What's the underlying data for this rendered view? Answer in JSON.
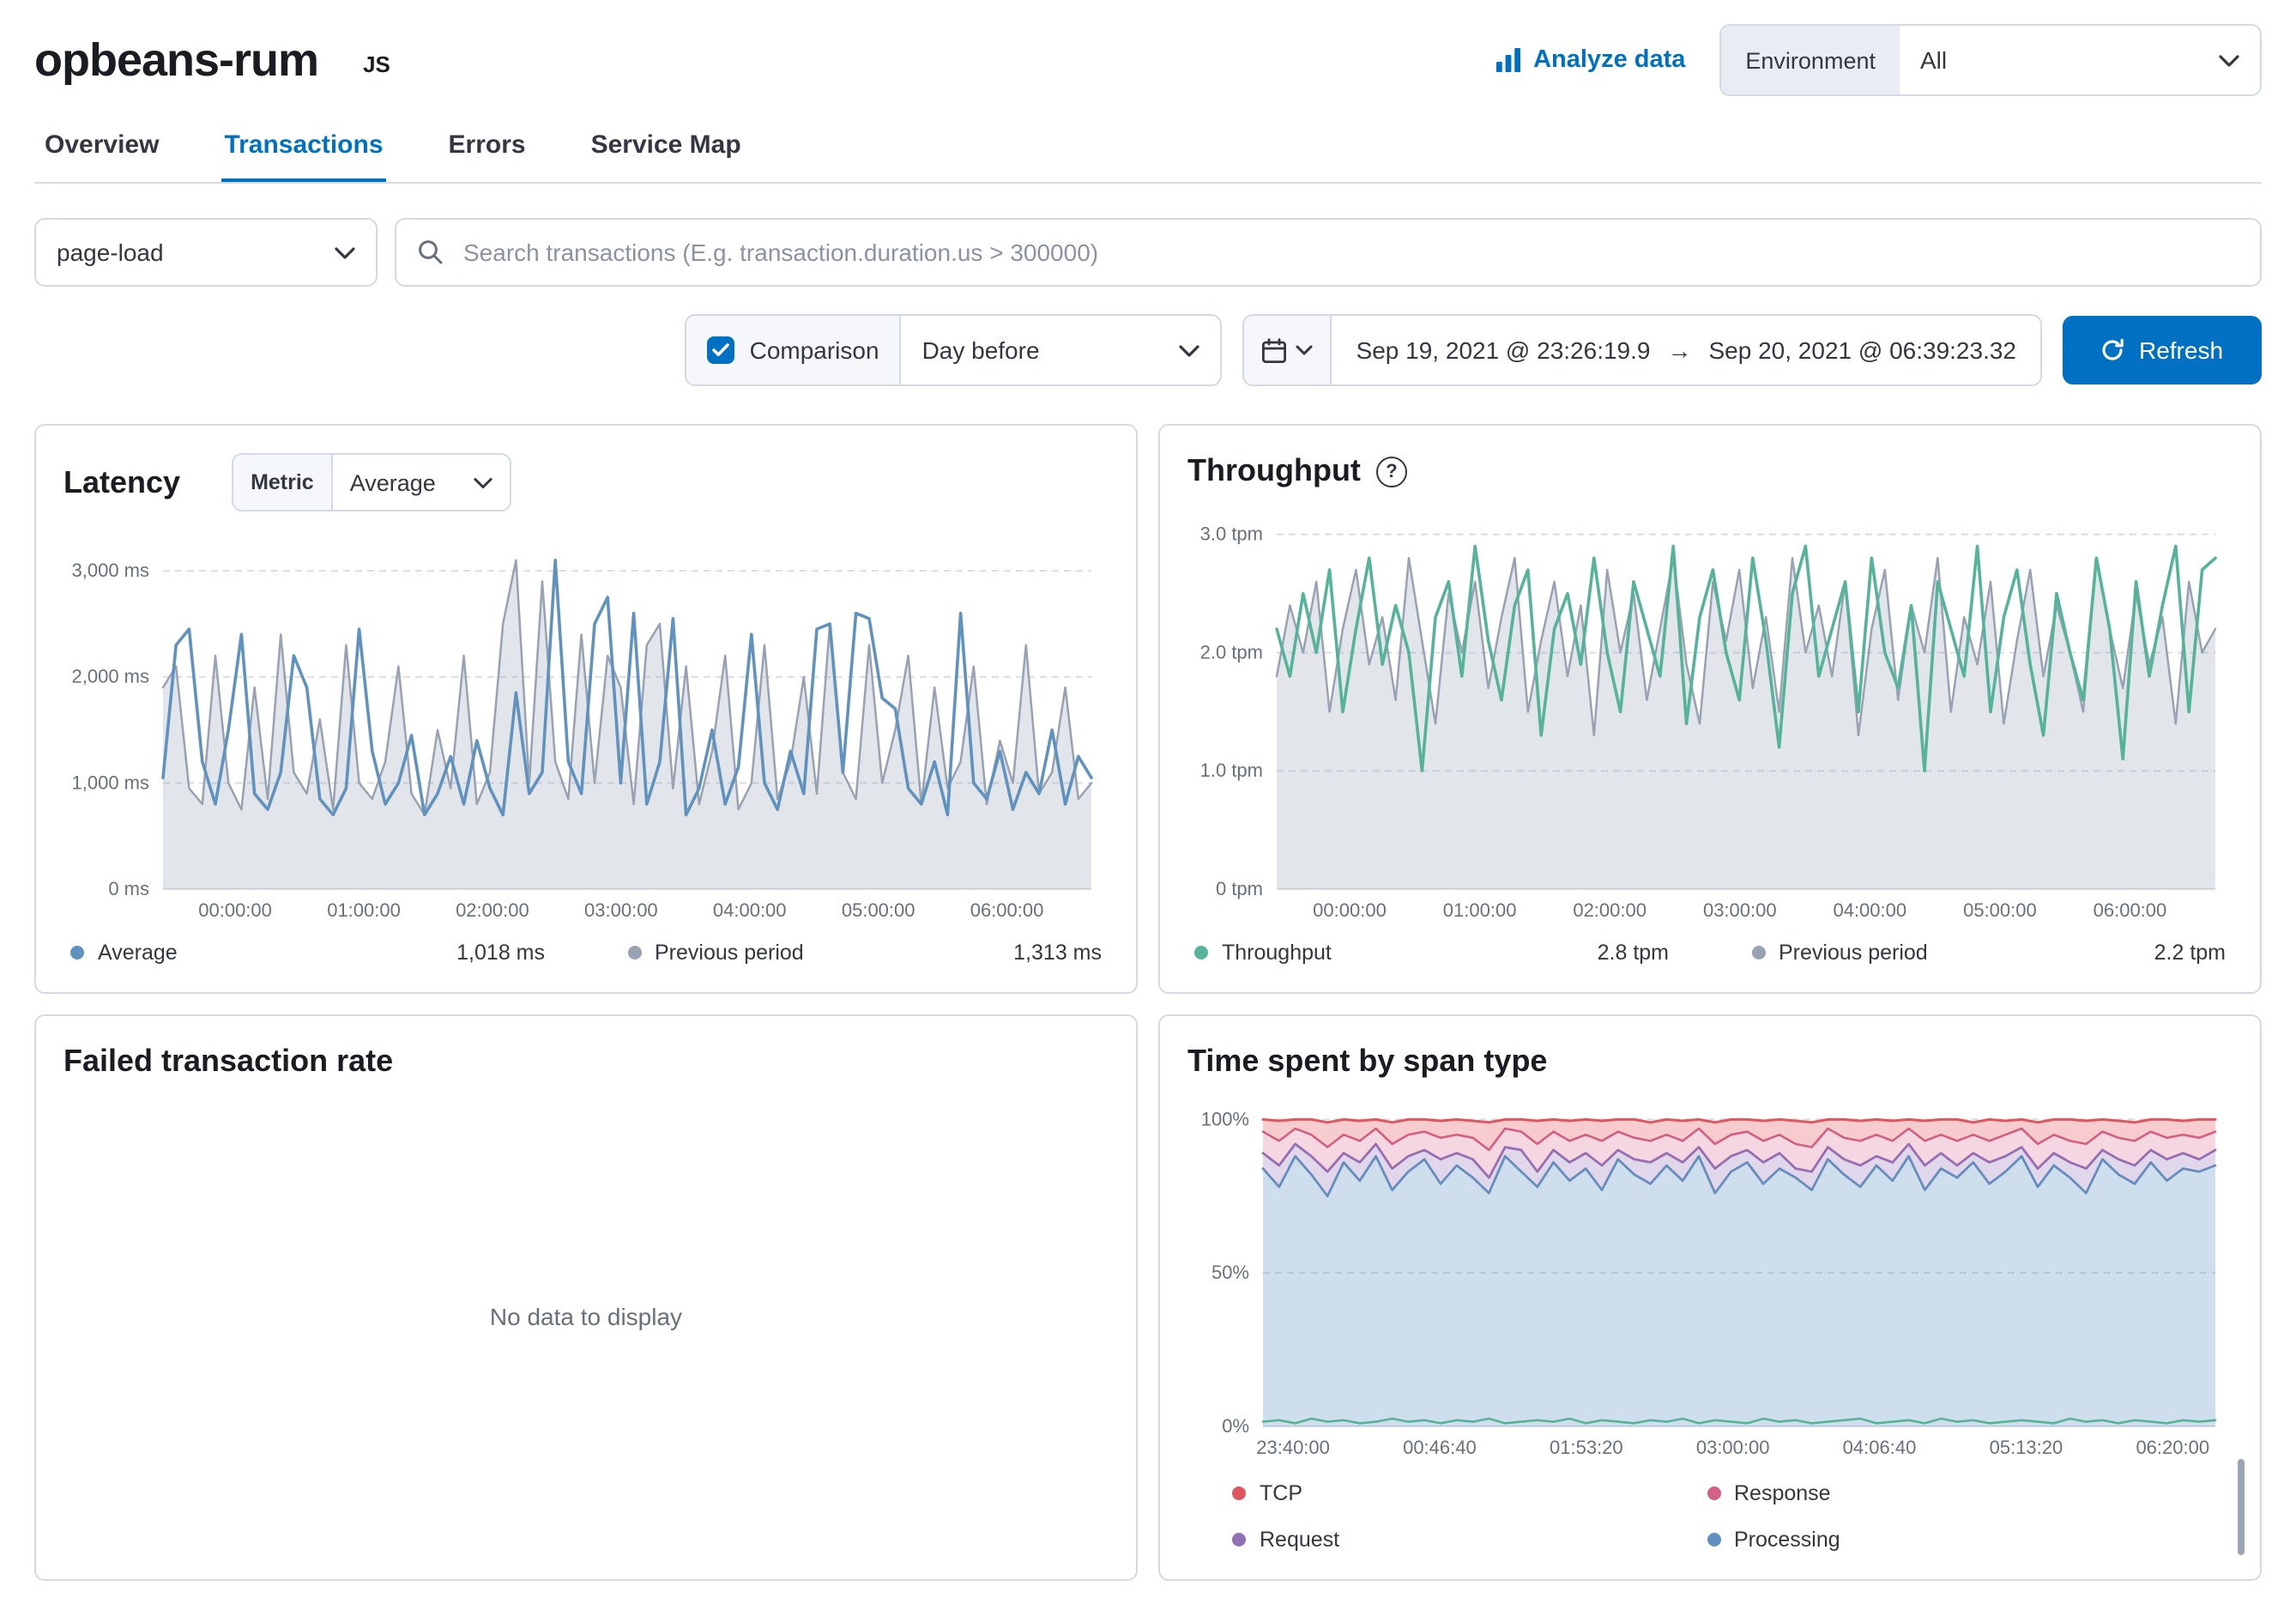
{
  "header": {
    "service_name": "opbeans-rum",
    "agent_badge": "JS",
    "analyze_data_label": "Analyze data",
    "environment_label": "Environment",
    "environment_value": "All"
  },
  "tabs": [
    {
      "label": "Overview",
      "active": false
    },
    {
      "label": "Transactions",
      "active": true
    },
    {
      "label": "Errors",
      "active": false
    },
    {
      "label": "Service Map",
      "active": false
    }
  ],
  "filters": {
    "transaction_type": "page-load",
    "search_placeholder": "Search transactions (E.g. transaction.duration.us > 300000)",
    "comparison_label": "Comparison",
    "comparison_checked": true,
    "comparison_value": "Day before",
    "date_start": "Sep 19, 2021 @ 23:26:19.9",
    "date_end": "Sep 20, 2021 @ 06:39:23.32",
    "refresh_label": "Refresh"
  },
  "colors": {
    "primary": "#0071c2",
    "blue_series": "#6092c0",
    "green_series": "#54b399",
    "gray_series": "#98a2b3",
    "pink_series": "#d36086",
    "purple_series": "#9170b8",
    "red_series": "#e0565f"
  },
  "panels": {
    "latency": {
      "title": "Latency",
      "metric_label": "Metric",
      "metric_value": "Average",
      "legend": [
        {
          "label": "Average",
          "value": "1,018 ms",
          "color": "#6092c0"
        },
        {
          "label": "Previous period",
          "value": "1,313 ms",
          "color": "#98a2b3"
        }
      ]
    },
    "throughput": {
      "title": "Throughput",
      "legend": [
        {
          "label": "Throughput",
          "value": "2.8 tpm",
          "color": "#54b399"
        },
        {
          "label": "Previous period",
          "value": "2.2 tpm",
          "color": "#98a2b3"
        }
      ]
    },
    "failed_rate": {
      "title": "Failed transaction rate",
      "empty_message": "No data to display"
    },
    "span_type": {
      "title": "Time spent by span type",
      "legend": [
        {
          "label": "TCP",
          "color": "#e0565f"
        },
        {
          "label": "Response",
          "color": "#d36086"
        },
        {
          "label": "Request",
          "color": "#9170b8"
        },
        {
          "label": "Processing",
          "color": "#6092c0"
        }
      ]
    }
  },
  "chart_data": [
    {
      "type": "line",
      "title": "Latency",
      "ylabel": "ms",
      "ylim": [
        0,
        3300
      ],
      "margin_left": 58,
      "grid": true,
      "y_ticks": [
        {
          "v": 3000,
          "label": "3,000 ms"
        },
        {
          "v": 2000,
          "label": "2,000 ms"
        },
        {
          "v": 1000,
          "label": "1,000 ms"
        },
        {
          "v": 0,
          "label": "0 ms"
        }
      ],
      "x_ticks": [
        {
          "f": 0.0777,
          "label": "00:00:00"
        },
        {
          "f": 0.2163,
          "label": "01:00:00"
        },
        {
          "f": 0.3548,
          "label": "02:00:00"
        },
        {
          "f": 0.4934,
          "label": "03:00:00"
        },
        {
          "f": 0.6319,
          "label": "04:00:00"
        },
        {
          "f": 0.7705,
          "label": "05:00:00"
        },
        {
          "f": 0.909,
          "label": "06:00:00"
        }
      ],
      "series": [
        {
          "name": "Previous period",
          "color": "#98a2b3",
          "mode": "area",
          "fill_opacity": 0.28,
          "width": 1.25,
          "values": [
            1900,
            2100,
            950,
            800,
            2200,
            1000,
            750,
            1900,
            850,
            2400,
            1100,
            900,
            1600,
            750,
            2300,
            1000,
            850,
            1200,
            2100,
            900,
            700,
            1500,
            950,
            2200,
            800,
            1100,
            2500,
            3100,
            1000,
            2900,
            1200,
            850,
            2400,
            1000,
            2200,
            1900,
            800,
            2300,
            2500,
            950,
            2100,
            800,
            1300,
            2200,
            750,
            1000,
            2300,
            850,
            1200,
            2000,
            900,
            2500,
            1100,
            850,
            2300,
            1000,
            1500,
            2200,
            800,
            1900,
            950,
            1200,
            2100,
            800,
            1400,
            1000,
            2300,
            900,
            1100,
            1900,
            850,
            1000
          ]
        },
        {
          "name": "Average",
          "color": "#6092c0",
          "mode": "line",
          "width": 1.8,
          "values": [
            1050,
            2300,
            2450,
            1200,
            800,
            1500,
            2400,
            900,
            750,
            1100,
            2200,
            1900,
            850,
            700,
            950,
            2450,
            1300,
            800,
            1000,
            1450,
            700,
            900,
            1250,
            800,
            1400,
            950,
            700,
            1850,
            900,
            1100,
            3100,
            1200,
            900,
            2500,
            2750,
            1000,
            2600,
            800,
            1200,
            2550,
            700,
            950,
            1500,
            800,
            1150,
            2400,
            1000,
            750,
            1300,
            900,
            2450,
            2500,
            1100,
            2600,
            2550,
            1800,
            1700,
            950,
            800,
            1200,
            700,
            2600,
            1000,
            850,
            1300,
            750,
            1100,
            900,
            1500,
            800,
            1250,
            1050
          ]
        }
      ]
    },
    {
      "type": "line",
      "title": "Throughput",
      "ylabel": "tpm",
      "ylim": [
        0,
        3.15
      ],
      "margin_left": 52,
      "grid": true,
      "y_ticks": [
        {
          "v": 3,
          "label": "3.0 tpm"
        },
        {
          "v": 2,
          "label": "2.0 tpm"
        },
        {
          "v": 1,
          "label": "1.0 tpm"
        },
        {
          "v": 0,
          "label": "0 tpm"
        }
      ],
      "x_ticks": [
        {
          "f": 0.0777,
          "label": "00:00:00"
        },
        {
          "f": 0.2163,
          "label": "01:00:00"
        },
        {
          "f": 0.3548,
          "label": "02:00:00"
        },
        {
          "f": 0.4934,
          "label": "03:00:00"
        },
        {
          "f": 0.6319,
          "label": "04:00:00"
        },
        {
          "f": 0.7705,
          "label": "05:00:00"
        },
        {
          "f": 0.909,
          "label": "06:00:00"
        }
      ],
      "series": [
        {
          "name": "Previous period",
          "color": "#98a2b3",
          "mode": "area",
          "fill_opacity": 0.28,
          "width": 1.25,
          "values": [
            1.8,
            2.4,
            2.0,
            2.6,
            1.5,
            2.2,
            2.7,
            1.9,
            2.3,
            1.6,
            2.8,
            2.1,
            1.4,
            2.5,
            2.0,
            2.6,
            1.7,
            2.3,
            2.8,
            1.5,
            2.1,
            2.6,
            1.8,
            2.4,
            1.3,
            2.7,
            2.0,
            2.5,
            1.6,
            2.2,
            2.8,
            1.9,
            1.4,
            2.6,
            2.1,
            2.7,
            1.7,
            2.3,
            1.5,
            2.8,
            2.0,
            2.4,
            1.8,
            2.6,
            1.3,
            2.2,
            2.7,
            1.6,
            2.4,
            2.0,
            2.8,
            1.5,
            2.3,
            1.9,
            2.6,
            1.4,
            2.1,
            2.7,
            1.8,
            2.4,
            2.0,
            1.5,
            2.8,
            2.2,
            1.7,
            2.5,
            1.9,
            2.3,
            1.4,
            2.6,
            2.0,
            2.2
          ]
        },
        {
          "name": "Throughput",
          "color": "#54b399",
          "mode": "line",
          "width": 1.8,
          "values": [
            2.2,
            1.8,
            2.5,
            2.0,
            2.7,
            1.5,
            2.2,
            2.8,
            1.9,
            2.4,
            2.0,
            1.0,
            2.3,
            2.6,
            1.8,
            2.9,
            2.1,
            1.6,
            2.4,
            2.7,
            1.3,
            2.2,
            2.5,
            1.9,
            2.8,
            2.0,
            1.5,
            2.6,
            2.2,
            1.8,
            2.9,
            1.4,
            2.3,
            2.7,
            2.0,
            1.6,
            2.8,
            2.1,
            1.2,
            2.5,
            2.9,
            1.8,
            2.2,
            2.6,
            1.5,
            2.8,
            2.0,
            1.7,
            2.4,
            1.0,
            2.6,
            2.2,
            1.8,
            2.9,
            1.5,
            2.3,
            2.7,
            1.9,
            1.3,
            2.5,
            2.0,
            1.6,
            2.8,
            2.2,
            1.1,
            2.6,
            1.8,
            2.4,
            2.9,
            1.5,
            2.7,
            2.8
          ]
        }
      ]
    },
    {
      "type": "area",
      "title": "Time spent by span type",
      "ylabel": "%",
      "ylim": [
        0,
        104
      ],
      "margin_left": 44,
      "grid": true,
      "y_ticks": [
        {
          "v": 100,
          "label": "100%"
        },
        {
          "v": 50,
          "label": "50%"
        },
        {
          "v": 0,
          "label": "0%"
        }
      ],
      "x_ticks": [
        {
          "f": 0.0316,
          "label": "23:40:00"
        },
        {
          "f": 0.1855,
          "label": "00:46:40"
        },
        {
          "f": 0.3395,
          "label": "01:53:20"
        },
        {
          "f": 0.4934,
          "label": "03:00:00"
        },
        {
          "f": 0.6473,
          "label": "04:06:40"
        },
        {
          "f": 0.8013,
          "label": "05:13:20"
        },
        {
          "f": 0.9552,
          "label": "06:20:00"
        }
      ],
      "series": [
        {
          "name": "Processing",
          "color": "#6092c0",
          "mode": "band",
          "fill_opacity": 0.3,
          "width": 1.4,
          "values": [
            84,
            78,
            88,
            82,
            75,
            86,
            80,
            88,
            77,
            83,
            87,
            79,
            85,
            81,
            76,
            88,
            83,
            78,
            86,
            80,
            84,
            77,
            87,
            82,
            79,
            85,
            80,
            88,
            76,
            83,
            86,
            79,
            84,
            81,
            77,
            87,
            82,
            78,
            85,
            80,
            88,
            77,
            84,
            81,
            86,
            79,
            83,
            88,
            78,
            85,
            81,
            76,
            87,
            82,
            79,
            86,
            80,
            84,
            83,
            85
          ]
        },
        {
          "name": "Request",
          "color": "#9170b8",
          "mode": "band",
          "fill_opacity": 0.28,
          "width": 1.4,
          "values": [
            89,
            85,
            92,
            88,
            83,
            89,
            86,
            92,
            84,
            88,
            90,
            87,
            89,
            87,
            81,
            91,
            90,
            83,
            90,
            86,
            89,
            85,
            90,
            87,
            86,
            89,
            86,
            91,
            84,
            88,
            90,
            86,
            89,
            84,
            83,
            91,
            87,
            85,
            88,
            86,
            92,
            85,
            89,
            85,
            89,
            86,
            88,
            91,
            84,
            89,
            86,
            84,
            90,
            87,
            85,
            90,
            87,
            89,
            87,
            90
          ]
        },
        {
          "name": "Response",
          "color": "#d36086",
          "mode": "band",
          "fill_opacity": 0.25,
          "width": 1.3,
          "values": [
            96,
            93,
            97,
            95,
            91,
            95,
            93,
            97,
            92,
            95,
            96,
            94,
            95,
            94,
            90,
            97,
            96,
            92,
            96,
            93,
            95,
            93,
            96,
            94,
            93,
            95,
            93,
            97,
            92,
            95,
            96,
            93,
            95,
            92,
            91,
            97,
            94,
            93,
            95,
            93,
            97,
            93,
            95,
            93,
            95,
            93,
            95,
            97,
            92,
            95,
            93,
            92,
            96,
            94,
            93,
            96,
            94,
            95,
            94,
            96
          ]
        },
        {
          "name": "TCP",
          "color": "#e0565f",
          "mode": "band",
          "fill_opacity": 0.3,
          "width": 1.5,
          "values": [
            100,
            99.5,
            100,
            100,
            99,
            100,
            99.5,
            100,
            99,
            100,
            100,
            99.5,
            100,
            99.5,
            99,
            100,
            100,
            99.5,
            100,
            99.5,
            100,
            99.5,
            100,
            100,
            99,
            100,
            99.5,
            100,
            99,
            100,
            100,
            99.5,
            100,
            99.5,
            99,
            100,
            100,
            99.5,
            100,
            99.5,
            100,
            99.5,
            100,
            100,
            99,
            100,
            99.5,
            100,
            99,
            100,
            100,
            99.5,
            100,
            99.5,
            99,
            100,
            100,
            99.5,
            100,
            100
          ]
        },
        {
          "name": "",
          "color": "#54b399",
          "mode": "line",
          "width": 1.3,
          "values": [
            1.5,
            2,
            1,
            2.5,
            1.5,
            2,
            1,
            1.5,
            2.5,
            1.5,
            2,
            1,
            2,
            1.5,
            2.5,
            1,
            1.5,
            2,
            1.5,
            2.5,
            1,
            2,
            1.5,
            1,
            2,
            1.5,
            2.5,
            1,
            2,
            1.5,
            1,
            2.5,
            1.5,
            2,
            1,
            1.5,
            2,
            2.5,
            1,
            1.5,
            2,
            1,
            2.5,
            1.5,
            2,
            1,
            1.5,
            2,
            1.5,
            1,
            2.5,
            1.5,
            2,
            1,
            2,
            1.5,
            1,
            2,
            1.5,
            2
          ]
        }
      ]
    }
  ]
}
